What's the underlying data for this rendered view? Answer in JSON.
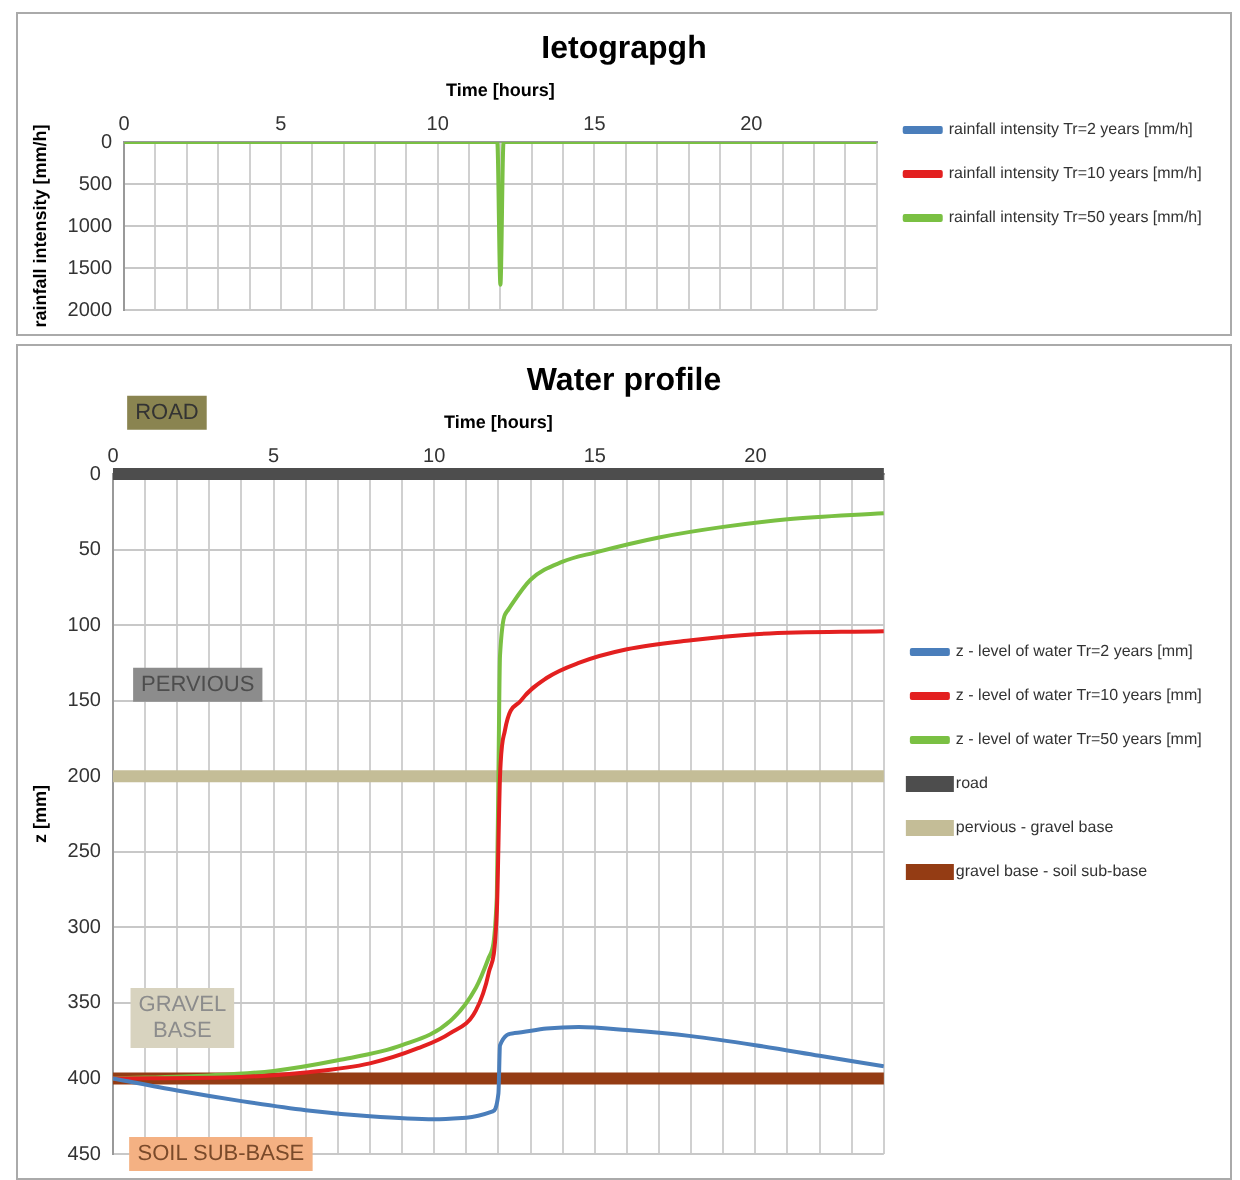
{
  "chart_data": [
    {
      "type": "line",
      "title": "Ietograpgh",
      "xlabel": "Time [hours]",
      "ylabel": "rainfall intensity [mm/h]",
      "xlim": [
        0,
        24
      ],
      "xticks": [
        0,
        {
          "value": 1,
          "label": null
        },
        {
          "value": 2,
          "label": null
        },
        {
          "value": 3,
          "label": null
        },
        {
          "value": 4,
          "label": null
        },
        5,
        {
          "value": 6,
          "label": null
        },
        {
          "value": 7,
          "label": null
        },
        {
          "value": 8,
          "label": null
        },
        {
          "value": 9,
          "label": null
        },
        10,
        {
          "value": 11,
          "label": null
        },
        {
          "value": 12,
          "label": null
        },
        {
          "value": 13,
          "label": null
        },
        {
          "value": 14,
          "label": null
        },
        15,
        {
          "value": 16,
          "label": null
        },
        {
          "value": 17,
          "label": null
        },
        {
          "value": 18,
          "label": null
        },
        {
          "value": 19,
          "label": null
        },
        20,
        {
          "value": 21,
          "label": null
        },
        {
          "value": 22,
          "label": null
        },
        {
          "value": 23,
          "label": null
        },
        {
          "value": 24,
          "label": null
        }
      ],
      "ylim": [
        2000,
        0
      ],
      "yticks": [
        0,
        500,
        1000,
        1500,
        2000
      ],
      "grid": true,
      "legend": "right",
      "marker": "none",
      "series": [
        {
          "name": "rainfall intensity Tr=2 years [mm/h]",
          "color": "#4a7ebb"
        },
        {
          "name": "rainfall intensity Tr=10 years [mm/h]",
          "color": "#e32020"
        },
        {
          "name": "rainfall intensity Tr=50 years [mm/h]",
          "color": "#7ac043",
          "x": [
            0,
            11.9,
            12,
            12.1,
            24
          ],
          "values": [
            0,
            0,
            1700,
            0,
            0
          ]
        }
      ]
    },
    {
      "type": "line",
      "title": "Water profile",
      "xlabel": "Time [hours]",
      "ylabel": "z [mm]",
      "xlim": [
        0,
        24
      ],
      "xticks": [
        0,
        {
          "value": 1,
          "label": null
        },
        {
          "value": 2,
          "label": null
        },
        {
          "value": 3,
          "label": null
        },
        {
          "value": 4,
          "label": null
        },
        5,
        {
          "value": 6,
          "label": null
        },
        {
          "value": 7,
          "label": null
        },
        {
          "value": 8,
          "label": null
        },
        {
          "value": 9,
          "label": null
        },
        10,
        {
          "value": 11,
          "label": null
        },
        {
          "value": 12,
          "label": null
        },
        {
          "value": 13,
          "label": null
        },
        {
          "value": 14,
          "label": null
        },
        15,
        {
          "value": 16,
          "label": null
        },
        {
          "value": 17,
          "label": null
        },
        {
          "value": 18,
          "label": null
        },
        {
          "value": 19,
          "label": null
        },
        20,
        {
          "value": 21,
          "label": null
        },
        {
          "value": 22,
          "label": null
        },
        {
          "value": 23,
          "label": null
        },
        {
          "value": 24,
          "label": null
        }
      ],
      "ylim": [
        450,
        0
      ],
      "yticks": [
        0,
        50,
        100,
        150,
        200,
        250,
        300,
        350,
        400,
        450
      ],
      "grid": true,
      "legend": "right",
      "marker": "none",
      "series": [
        {
          "name": "z - level of water Tr=2 years [mm]",
          "color": "#4a7ebb",
          "x": [
            0,
            2,
            4,
            6,
            8,
            10,
            11,
            11.8,
            12,
            12.05,
            12.5,
            13.5,
            14.5,
            16,
            18,
            20,
            22,
            24
          ],
          "values": [
            400,
            408,
            415,
            421,
            425,
            427,
            426,
            422,
            410,
            378,
            370,
            367,
            366,
            368,
            372,
            378,
            385,
            392
          ]
        },
        {
          "name": "z - level of water Tr=10 years [mm]",
          "color": "#e32020",
          "x": [
            0,
            4,
            6,
            8,
            9.5,
            10.5,
            11.3,
            11.7,
            11.95,
            12.05,
            12.2,
            12.7,
            13.5,
            14.5,
            16,
            18,
            20,
            24
          ],
          "values": [
            400,
            399,
            396,
            390,
            380,
            370,
            355,
            330,
            290,
            200,
            170,
            150,
            135,
            125,
            116,
            110,
            106,
            104
          ]
        },
        {
          "name": "z - level of water Tr=50 years [mm]",
          "color": "#7ac043",
          "x": [
            0,
            3,
            5,
            7,
            9,
            10.5,
            11.3,
            11.7,
            11.95,
            12,
            12.05,
            12.3,
            13,
            14,
            15,
            17,
            19,
            21,
            24
          ],
          "values": [
            400,
            398,
            395,
            388,
            378,
            362,
            340,
            320,
            280,
            200,
            120,
            90,
            70,
            58,
            52,
            42,
            35,
            30,
            26
          ]
        }
      ],
      "ref_lines": [
        {
          "axis": "y",
          "value": 0,
          "label": "road",
          "color": "#4d4d4d"
        },
        {
          "axis": "y",
          "value": 200,
          "label": "pervious - gravel base",
          "color": "#c4bd97"
        },
        {
          "axis": "y",
          "value": 400,
          "label": "gravel base - soil sub-base",
          "color": "#943c14"
        }
      ],
      "annotations": [
        "ROAD",
        "PERVIOUS",
        "GRAVEL BASE",
        "SOIL SUB-BASE"
      ]
    }
  ]
}
